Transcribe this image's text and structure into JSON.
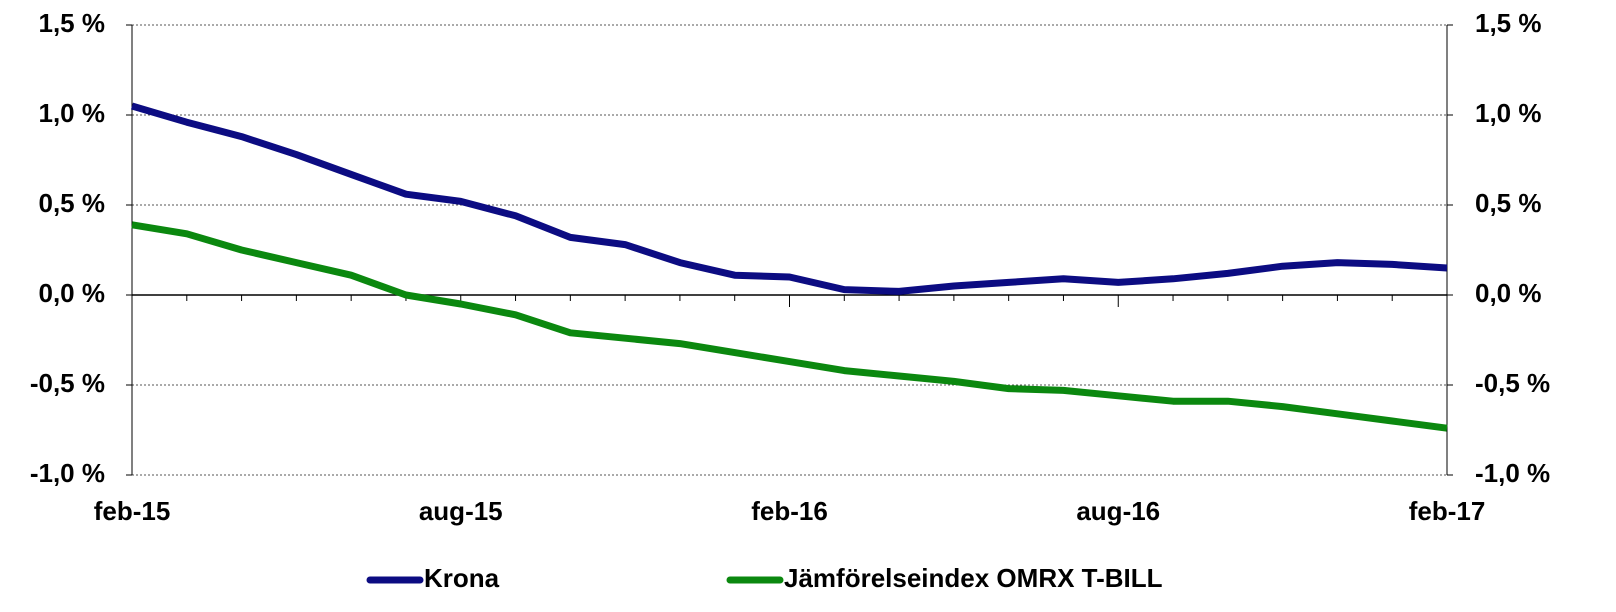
{
  "chart_data": {
    "type": "line",
    "categories": [
      "feb-15",
      null,
      null,
      null,
      null,
      null,
      "aug-15",
      null,
      null,
      null,
      null,
      null,
      "feb-16",
      null,
      null,
      null,
      null,
      null,
      "aug-16",
      null,
      null,
      null,
      null,
      null,
      "feb-17"
    ],
    "series": [
      {
        "name": "Krona",
        "color": "#0c0c82",
        "values": [
          1.05,
          0.96,
          0.88,
          0.78,
          0.67,
          0.56,
          0.52,
          0.44,
          0.32,
          0.28,
          0.18,
          0.11,
          0.1,
          0.03,
          0.02,
          0.05,
          0.07,
          0.09,
          0.07,
          0.09,
          0.12,
          0.16,
          0.18,
          0.17,
          0.15
        ]
      },
      {
        "name": "Jämförelseindex OMRX T-BILL",
        "color": "#0b880f",
        "values": [
          0.39,
          0.34,
          0.25,
          0.18,
          0.11,
          0.0,
          -0.05,
          -0.11,
          -0.21,
          -0.24,
          -0.27,
          -0.32,
          -0.37,
          -0.42,
          -0.45,
          -0.48,
          -0.52,
          -0.53,
          -0.56,
          -0.59,
          -0.59,
          -0.62,
          -0.66,
          -0.7,
          -0.74
        ]
      }
    ],
    "ylim": [
      -1.0,
      1.5
    ],
    "yticks": [
      {
        "value": -1.0,
        "label": "-1,0 %"
      },
      {
        "value": -0.5,
        "label": "-0,5 %"
      },
      {
        "value": 0.0,
        "label": "0,0 %"
      },
      {
        "value": 0.5,
        "label": "0,5 %"
      },
      {
        "value": 1.0,
        "label": "1,0 %"
      },
      {
        "value": 1.5,
        "label": "1,5 %"
      }
    ],
    "grid": true,
    "legend": "bottom"
  }
}
